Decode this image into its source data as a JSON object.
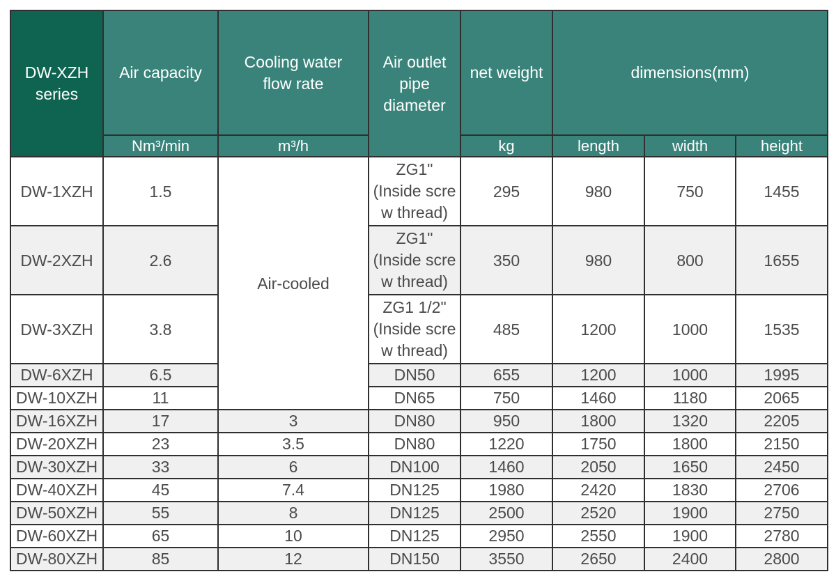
{
  "header": {
    "series": "DW-XZH series",
    "air_capacity": "Air capacity",
    "cooling_water": "Cooling water flow rate",
    "air_outlet": "Air outlet pipe diameter",
    "net_weight": "net weight",
    "dimensions": "dimensions(mm)",
    "units": {
      "air_capacity": "Nm³/min",
      "cooling_water": "m³/h",
      "net_weight": "kg",
      "length": "length",
      "width": "width",
      "height": "height"
    }
  },
  "air_cooled_label": "Air-cooled",
  "rows": [
    {
      "model": "DW-1XZH",
      "capacity": "1.5",
      "cooling": "",
      "pipe": "ZG1\"\n(Inside scre\nw thread)",
      "weight": "295",
      "length": "980",
      "width": "750",
      "height": "1455"
    },
    {
      "model": "DW-2XZH",
      "capacity": "2.6",
      "cooling": "",
      "pipe": "ZG1\"\n(Inside scre\nw thread)",
      "weight": "350",
      "length": "980",
      "width": "800",
      "height": "1655"
    },
    {
      "model": "DW-3XZH",
      "capacity": "3.8",
      "cooling": "",
      "pipe": "ZG1 1/2\"\n(Inside scre\nw thread)",
      "weight": "485",
      "length": "1200",
      "width": "1000",
      "height": "1535"
    },
    {
      "model": "DW-6XZH",
      "capacity": "6.5",
      "cooling": "",
      "pipe": "DN50",
      "weight": "655",
      "length": "1200",
      "width": "1000",
      "height": "1995"
    },
    {
      "model": "DW-10XZH",
      "capacity": "11",
      "cooling": "",
      "pipe": "DN65",
      "weight": "750",
      "length": "1460",
      "width": "1180",
      "height": "2065"
    },
    {
      "model": "DW-16XZH",
      "capacity": "17",
      "cooling": "3",
      "pipe": "DN80",
      "weight": "950",
      "length": "1800",
      "width": "1320",
      "height": "2205"
    },
    {
      "model": "DW-20XZH",
      "capacity": "23",
      "cooling": "3.5",
      "pipe": "DN80",
      "weight": "1220",
      "length": "1750",
      "width": "1800",
      "height": "2150"
    },
    {
      "model": "DW-30XZH",
      "capacity": "33",
      "cooling": "6",
      "pipe": "DN100",
      "weight": "1460",
      "length": "2050",
      "width": "1650",
      "height": "2450"
    },
    {
      "model": "DW-40XZH",
      "capacity": "45",
      "cooling": "7.4",
      "pipe": "DN125",
      "weight": "1980",
      "length": "2420",
      "width": "1830",
      "height": "2706"
    },
    {
      "model": "DW-50XZH",
      "capacity": "55",
      "cooling": "8",
      "pipe": "DN125",
      "weight": "2500",
      "length": "2520",
      "width": "1900",
      "height": "2750"
    },
    {
      "model": "DW-60XZH",
      "capacity": "65",
      "cooling": "10",
      "pipe": "DN125",
      "weight": "2950",
      "length": "2550",
      "width": "1900",
      "height": "2780"
    },
    {
      "model": "DW-80XZH",
      "capacity": "85",
      "cooling": "12",
      "pipe": "DN150",
      "weight": "3550",
      "length": "2650",
      "width": "2400",
      "height": "2800"
    }
  ]
}
